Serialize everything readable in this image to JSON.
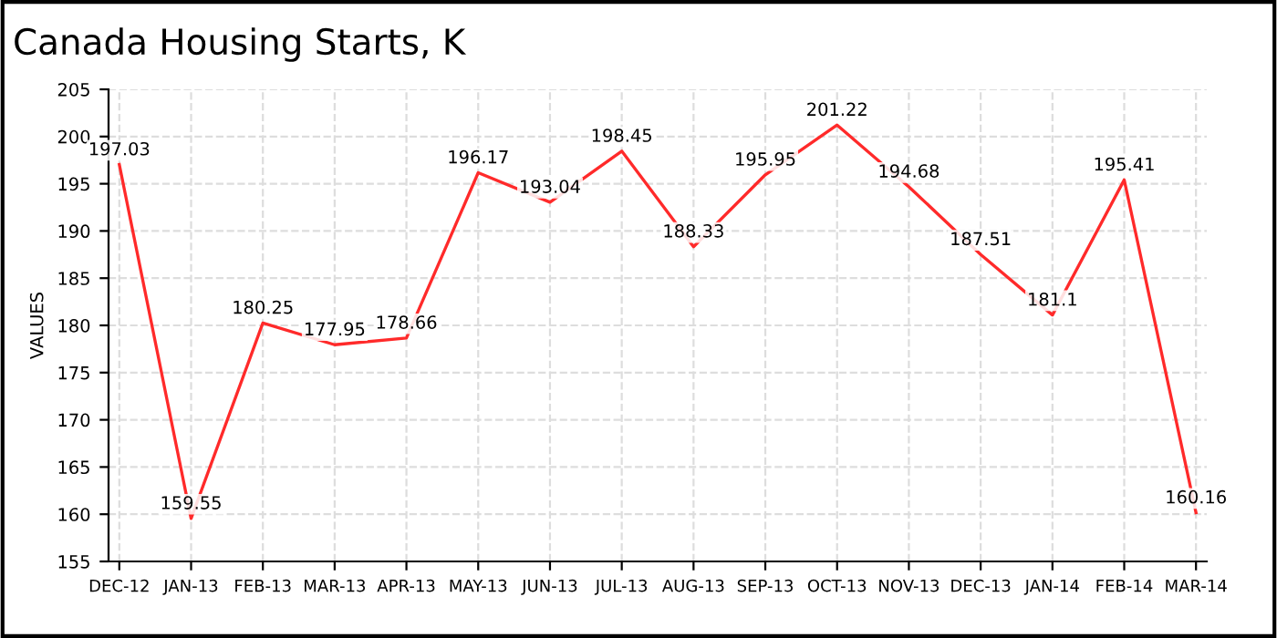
{
  "chart_data": {
    "type": "line",
    "title": "Canada Housing Starts, K",
    "ylabel": "VALUES",
    "categories": [
      "DEC-12",
      "JAN-13",
      "FEB-13",
      "MAR-13",
      "APR-13",
      "MAY-13",
      "JUN-13",
      "JUL-13",
      "AUG-13",
      "SEP-13",
      "OCT-13",
      "NOV-13",
      "DEC-13",
      "JAN-14",
      "FEB-14",
      "MAR-14"
    ],
    "series": [
      {
        "color": "#ff2a2a",
        "values": [
          197.03,
          159.55,
          180.25,
          177.95,
          178.66,
          196.17,
          193.04,
          198.45,
          188.33,
          195.95,
          201.22,
          194.68,
          187.51,
          181.1,
          195.41,
          160.16
        ]
      }
    ],
    "ylim": [
      155,
      205
    ],
    "yticks": [
      155,
      160,
      165,
      170,
      175,
      180,
      185,
      190,
      195,
      200,
      205
    ],
    "grid": true,
    "data_labels": true,
    "marker": "none",
    "line_style": "solid"
  }
}
